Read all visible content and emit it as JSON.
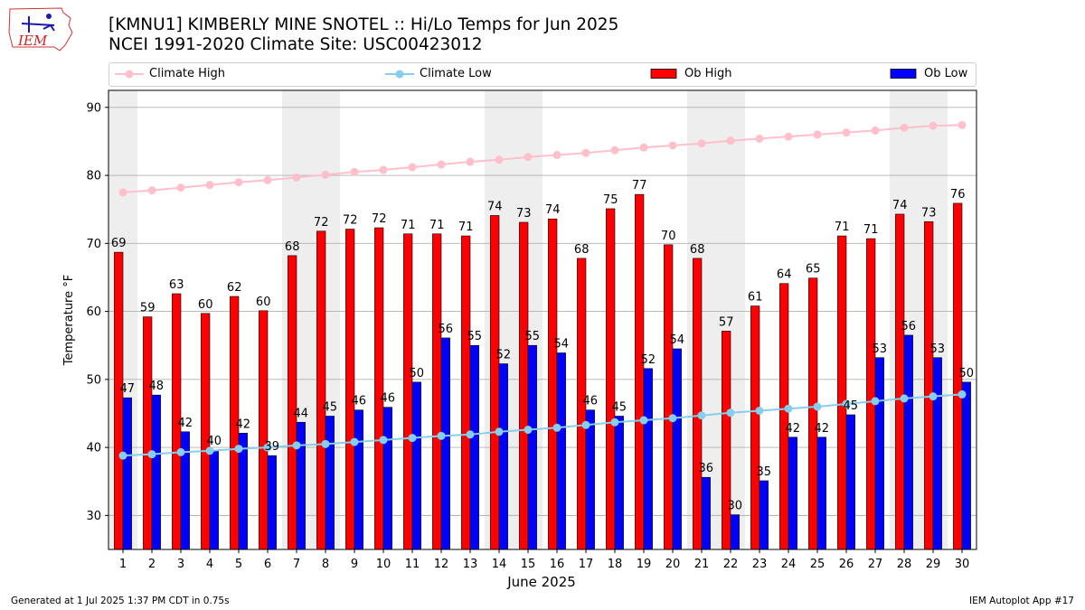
{
  "header": {
    "title_line1": "[KMNU1] KIMBERLY MINE SNOTEL :: Hi/Lo Temps for Jun 2025",
    "title_line2": "NCEI 1991-2020 Climate Site: USC00423012",
    "logo_text": "IEM"
  },
  "legend": {
    "climate_high": "Climate High",
    "climate_low": "Climate Low",
    "ob_high": "Ob High",
    "ob_low": "Ob Low"
  },
  "colors": {
    "ob_high": "#ff0000",
    "ob_low": "#0000ff",
    "climate_high": "#ffc0cb",
    "climate_low": "#87ceeb",
    "weekend_band": "#eeeeee"
  },
  "footer": {
    "left": "Generated at 1 Jul 2025 1:37 PM CDT in 0.75s",
    "right": "IEM Autoplot App #17"
  },
  "chart_data": {
    "type": "bar",
    "xlabel": "June 2025",
    "ylabel": "Temperature °F",
    "ylim": [
      25,
      92.5
    ],
    "yticks": [
      30,
      40,
      50,
      60,
      70,
      80,
      90
    ],
    "grid": true,
    "legend_position": "top",
    "categories": [
      "1",
      "2",
      "3",
      "4",
      "5",
      "6",
      "7",
      "8",
      "9",
      "10",
      "11",
      "12",
      "13",
      "14",
      "15",
      "16",
      "17",
      "18",
      "19",
      "20",
      "21",
      "22",
      "23",
      "24",
      "25",
      "26",
      "27",
      "28",
      "29",
      "30"
    ],
    "shaded_days": [
      1,
      7,
      8,
      14,
      15,
      21,
      22,
      28,
      29
    ],
    "series": [
      {
        "name": "Ob High",
        "kind": "bar",
        "values": [
          68.7,
          59.2,
          62.6,
          59.7,
          62.2,
          60.1,
          68.2,
          71.8,
          72.1,
          72.3,
          71.4,
          71.4,
          71.1,
          74.1,
          73.1,
          73.6,
          67.8,
          75.1,
          77.2,
          69.8,
          67.8,
          57.1,
          60.8,
          64.1,
          64.9,
          71.1,
          70.7,
          74.3,
          73.2,
          75.9
        ],
        "labels": [
          "69",
          "59",
          "63",
          "60",
          "62",
          "60",
          "68",
          "72",
          "72",
          "72",
          "71",
          "71",
          "71",
          "74",
          "73",
          "74",
          "68",
          "75",
          "77",
          "70",
          "68",
          "57",
          "61",
          "64",
          "65",
          "71",
          "71",
          "74",
          "73",
          "76"
        ]
      },
      {
        "name": "Ob Low",
        "kind": "bar",
        "values": [
          47.3,
          47.7,
          42.3,
          39.6,
          42.1,
          38.8,
          43.7,
          44.6,
          45.5,
          45.9,
          49.6,
          56.1,
          55.0,
          52.3,
          55.0,
          53.9,
          45.5,
          44.6,
          51.6,
          54.5,
          35.6,
          30.1,
          35.1,
          41.5,
          41.5,
          44.8,
          53.2,
          56.5,
          53.2,
          49.6
        ],
        "labels": [
          "47",
          "48",
          "42",
          "40",
          "42",
          "39",
          "44",
          "45",
          "46",
          "46",
          "50",
          "56",
          "55",
          "52",
          "55",
          "54",
          "46",
          "45",
          "52",
          "54",
          "36",
          "30",
          "35",
          "42",
          "42",
          "45",
          "53",
          "56",
          "53",
          "50"
        ]
      },
      {
        "name": "Climate High",
        "kind": "line",
        "values": [
          77.5,
          77.8,
          78.2,
          78.6,
          79.0,
          79.3,
          79.7,
          80.1,
          80.5,
          80.8,
          81.2,
          81.6,
          82.0,
          82.3,
          82.7,
          83.0,
          83.3,
          83.7,
          84.1,
          84.4,
          84.7,
          85.1,
          85.4,
          85.7,
          86.0,
          86.3,
          86.6,
          87.0,
          87.3,
          87.4
        ]
      },
      {
        "name": "Climate Low",
        "kind": "line",
        "values": [
          38.8,
          39.0,
          39.3,
          39.5,
          39.8,
          40.0,
          40.3,
          40.5,
          40.8,
          41.1,
          41.4,
          41.7,
          41.9,
          42.3,
          42.6,
          42.9,
          43.3,
          43.7,
          44.0,
          44.3,
          44.7,
          45.1,
          45.4,
          45.7,
          46.0,
          46.4,
          46.8,
          47.2,
          47.5,
          47.8
        ]
      }
    ]
  }
}
